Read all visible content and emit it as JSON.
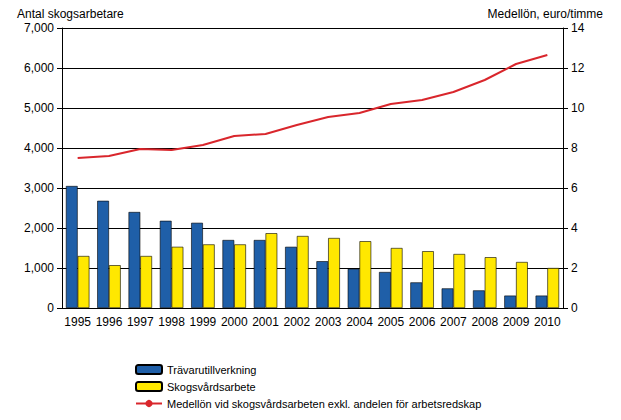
{
  "chart_data": {
    "type": "bar",
    "y_label": "Antal skogsarbetare",
    "y2_label": "Medellön, euro/timme",
    "categories": [
      "1995",
      "1996",
      "1997",
      "1998",
      "1999",
      "2000",
      "2001",
      "2002",
      "2003",
      "2004",
      "2005",
      "2006",
      "2007",
      "2008",
      "2009",
      "2010"
    ],
    "series": [
      {
        "name": "Trävarutillverkning",
        "type": "bar",
        "color": "#1f5fa8",
        "values": [
          3050,
          2680,
          2400,
          2180,
          2130,
          1700,
          1700,
          1530,
          1170,
          980,
          900,
          640,
          490,
          440,
          310,
          310
        ]
      },
      {
        "name": "Skogsvårdsarbete",
        "type": "bar",
        "color": "#ffe800",
        "values": [
          1300,
          1070,
          1300,
          1530,
          1590,
          1590,
          1870,
          1800,
          1750,
          1670,
          1500,
          1420,
          1350,
          1270,
          1150,
          1000
        ]
      },
      {
        "name": "Medellön vid skogsvårdsarbeten exkl. andelen för arbetsredskap",
        "type": "line",
        "axis": "y2",
        "color": "#d9262c",
        "values": [
          7.5,
          7.6,
          7.95,
          7.9,
          8.15,
          8.6,
          8.7,
          9.15,
          9.55,
          9.75,
          10.2,
          10.4,
          10.8,
          11.4,
          12.2,
          12.65
        ]
      }
    ],
    "ylim": [
      0,
      7000
    ],
    "yticks": [
      0,
      1000,
      2000,
      3000,
      4000,
      5000,
      6000,
      7000
    ],
    "y2lim": [
      0,
      14
    ],
    "y2ticks": [
      0,
      2,
      4,
      6,
      8,
      10,
      12,
      14
    ],
    "grid": true,
    "legend": "bottom"
  }
}
